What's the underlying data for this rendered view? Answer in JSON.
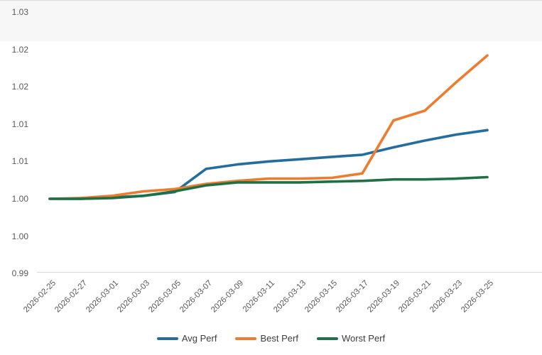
{
  "chart_data": {
    "type": "line",
    "title": "",
    "xlabel": "",
    "ylabel": "",
    "x_tick_labels": [
      "2026-02-25",
      "2026-02-27",
      "2026-03-01",
      "2026-03-03",
      "2026-03-05",
      "2026-03-07",
      "2026-03-09",
      "2026-03-11",
      "2026-03-13",
      "2026-03-15",
      "2026-03-17",
      "2026-03-19",
      "2026-03-21",
      "2026-03-23",
      "2026-03-25"
    ],
    "y_ticks": [
      {
        "value": 1.025,
        "label": "1.03"
      },
      {
        "value": 1.02,
        "label": "1.02"
      },
      {
        "value": 1.015,
        "label": "1.02"
      },
      {
        "value": 1.01,
        "label": "1.01"
      },
      {
        "value": 1.005,
        "label": "1.01"
      },
      {
        "value": 1.0,
        "label": "1.00"
      },
      {
        "value": 0.995,
        "label": "1.00"
      },
      {
        "value": 0.99,
        "label": "0.99"
      }
    ],
    "ylim": [
      0.99,
      1.025
    ],
    "grid": "bottom-line-only",
    "legend_position": "bottom-center",
    "series": [
      {
        "name": "Avg Perf",
        "color": "#236d9f",
        "values": [
          1.0,
          1.0,
          1.0002,
          1.0004,
          1.0009,
          1.004,
          1.0046,
          1.005,
          1.0053,
          1.0056,
          1.0059,
          1.0069,
          1.0078,
          1.0086,
          1.0092
        ]
      },
      {
        "name": "Best Perf",
        "color": "#ee7c2f",
        "values": [
          1.0,
          1.0001,
          1.0004,
          1.001,
          1.0013,
          1.002,
          1.0024,
          1.0027,
          1.0027,
          1.0028,
          1.0034,
          1.0105,
          1.0118,
          1.0156,
          1.0192
        ]
      },
      {
        "name": "Worst Perf",
        "color": "#1e7145",
        "values": [
          1.0,
          1.0,
          1.0001,
          1.0004,
          1.001,
          1.0018,
          1.0022,
          1.0022,
          1.0022,
          1.0023,
          1.0024,
          1.0026,
          1.0026,
          1.0027,
          1.0029
        ]
      }
    ]
  }
}
